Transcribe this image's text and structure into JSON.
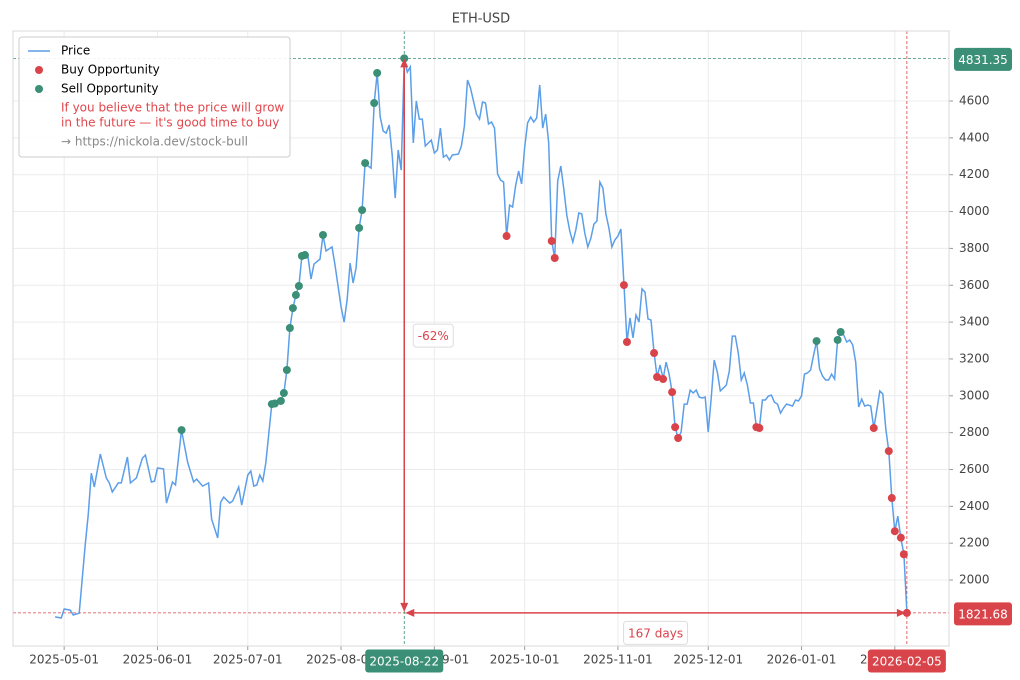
{
  "chart_data": {
    "type": "line",
    "title": "ETH-USD",
    "xlim": [
      "2025-04-14",
      "2026-02-19"
    ],
    "xticks": [
      "2025-05-01",
      "2025-06-01",
      "2025-07-01",
      "2025-08-01",
      "2025-09-01",
      "2025-10-01",
      "2025-11-01",
      "2025-12-01",
      "2026-01-01",
      "2026-02-01"
    ],
    "ylim": [
      1642,
      4980
    ],
    "yticks": [
      2000,
      2200,
      2400,
      2600,
      2800,
      3000,
      3200,
      3400,
      3600,
      3800,
      4000,
      4200,
      4400,
      4600
    ],
    "grid": true,
    "legend_position": "upper left",
    "legend_note": [
      "If you believe that the price will grow",
      "in the future — it's good time to buy"
    ],
    "legend_note_color": "#e0474c",
    "legend_link": "→ https://nickola.dev/stock-bull",
    "series": [
      {
        "name": "Price",
        "kind": "line",
        "color": "#5b9ee9",
        "x": [
          "2025-04-28",
          "2025-04-30",
          "2025-05-01",
          "2025-05-03",
          "2025-05-04",
          "2025-05-06",
          "2025-05-08",
          "2025-05-09",
          "2025-05-10",
          "2025-05-11",
          "2025-05-13",
          "2025-05-15",
          "2025-05-16",
          "2025-05-17",
          "2025-05-19",
          "2025-05-20",
          "2025-05-22",
          "2025-05-23",
          "2025-05-25",
          "2025-05-27",
          "2025-05-28",
          "2025-05-30",
          "2025-05-31",
          "2025-06-01",
          "2025-06-03",
          "2025-06-04",
          "2025-06-06",
          "2025-06-07",
          "2025-06-09",
          "2025-06-11",
          "2025-06-13",
          "2025-06-14",
          "2025-06-16",
          "2025-06-18",
          "2025-06-19",
          "2025-06-21",
          "2025-06-22",
          "2025-06-23",
          "2025-06-25",
          "2025-06-26",
          "2025-06-28",
          "2025-06-29",
          "2025-07-01",
          "2025-07-02",
          "2025-07-03",
          "2025-07-04",
          "2025-07-05",
          "2025-07-06",
          "2025-07-07",
          "2025-07-09",
          "2025-07-10",
          "2025-07-11",
          "2025-07-12",
          "2025-07-13",
          "2025-07-14",
          "2025-07-15",
          "2025-07-16",
          "2025-07-17",
          "2025-07-18",
          "2025-07-19",
          "2025-07-20",
          "2025-07-21",
          "2025-07-22",
          "2025-07-23",
          "2025-07-25",
          "2025-07-26",
          "2025-07-27",
          "2025-07-29",
          "2025-07-30",
          "2025-08-01",
          "2025-08-02",
          "2025-08-03",
          "2025-08-04",
          "2025-08-05",
          "2025-08-06",
          "2025-08-07",
          "2025-08-08",
          "2025-08-09",
          "2025-08-10",
          "2025-08-11",
          "2025-08-12",
          "2025-08-13",
          "2025-08-14",
          "2025-08-15",
          "2025-08-16",
          "2025-08-17",
          "2025-08-18",
          "2025-08-19",
          "2025-08-20",
          "2025-08-21",
          "2025-08-22",
          "2025-08-23",
          "2025-08-24",
          "2025-08-25",
          "2025-08-26",
          "2025-08-27",
          "2025-08-28",
          "2025-08-29",
          "2025-08-30",
          "2025-08-31",
          "2025-09-01",
          "2025-09-02",
          "2025-09-03",
          "2025-09-04",
          "2025-09-05",
          "2025-09-06",
          "2025-09-07",
          "2025-09-09",
          "2025-09-10",
          "2025-09-11",
          "2025-09-12",
          "2025-09-13",
          "2025-09-15",
          "2025-09-16",
          "2025-09-17",
          "2025-09-18",
          "2025-09-19",
          "2025-09-20",
          "2025-09-21",
          "2025-09-22",
          "2025-09-23",
          "2025-09-24",
          "2025-09-25",
          "2025-09-26",
          "2025-09-27",
          "2025-09-28",
          "2025-09-29",
          "2025-09-30",
          "2025-10-01",
          "2025-10-02",
          "2025-10-03",
          "2025-10-04",
          "2025-10-05",
          "2025-10-06",
          "2025-10-07",
          "2025-10-08",
          "2025-10-09",
          "2025-10-10",
          "2025-10-11",
          "2025-10-12",
          "2025-10-13",
          "2025-10-14",
          "2025-10-15",
          "2025-10-16",
          "2025-10-17",
          "2025-10-18",
          "2025-10-19",
          "2025-10-20",
          "2025-10-21",
          "2025-10-22",
          "2025-10-23",
          "2025-10-24",
          "2025-10-25",
          "2025-10-26",
          "2025-10-27",
          "2025-10-28",
          "2025-10-29",
          "2025-10-30",
          "2025-10-31",
          "2025-11-01",
          "2025-11-02",
          "2025-11-03",
          "2025-11-04",
          "2025-11-05",
          "2025-11-06",
          "2025-11-07",
          "2025-11-08",
          "2025-11-09",
          "2025-11-10",
          "2025-11-11",
          "2025-11-12",
          "2025-11-13",
          "2025-11-14",
          "2025-11-15",
          "2025-11-16",
          "2025-11-17",
          "2025-11-18",
          "2025-11-19",
          "2025-11-20",
          "2025-11-21",
          "2025-11-22",
          "2025-11-23",
          "2025-11-24",
          "2025-11-25",
          "2025-11-26",
          "2025-11-27",
          "2025-11-28",
          "2025-11-29",
          "2025-11-30",
          "2025-12-01",
          "2025-12-02",
          "2025-12-03",
          "2025-12-04",
          "2025-12-05",
          "2025-12-06",
          "2025-12-07",
          "2025-12-08",
          "2025-12-09",
          "2025-12-10",
          "2025-12-11",
          "2025-12-12",
          "2025-12-13",
          "2025-12-14",
          "2025-12-15",
          "2025-12-16",
          "2025-12-17",
          "2025-12-18",
          "2025-12-19",
          "2025-12-20",
          "2025-12-21",
          "2025-12-22",
          "2025-12-23",
          "2025-12-24",
          "2025-12-25",
          "2025-12-26",
          "2025-12-27",
          "2025-12-28",
          "2025-12-29",
          "2025-12-30",
          "2025-12-31",
          "2026-01-01",
          "2026-01-02",
          "2026-01-03",
          "2026-01-04",
          "2026-01-05",
          "2026-01-06",
          "2026-01-07",
          "2026-01-08",
          "2026-01-09",
          "2026-01-10",
          "2026-01-11",
          "2026-01-12",
          "2026-01-13",
          "2026-01-14",
          "2026-01-15",
          "2026-01-16",
          "2026-01-17",
          "2026-01-18",
          "2026-01-19",
          "2026-01-20",
          "2026-01-21",
          "2026-01-22",
          "2026-01-23",
          "2026-01-24",
          "2026-01-25",
          "2026-01-26",
          "2026-01-27",
          "2026-01-28",
          "2026-01-29",
          "2026-01-30",
          "2026-01-31",
          "2026-02-01",
          "2026-02-02",
          "2026-02-03",
          "2026-02-04",
          "2026-02-05"
        ],
        "values": [
          1800,
          1794,
          1843,
          1837,
          1810,
          1820,
          2190,
          2353,
          2580,
          2505,
          2684,
          2554,
          2527,
          2478,
          2527,
          2527,
          2668,
          2527,
          2554,
          2662,
          2678,
          2532,
          2537,
          2608,
          2603,
          2418,
          2532,
          2516,
          2814,
          2640,
          2532,
          2548,
          2510,
          2527,
          2331,
          2228,
          2423,
          2450,
          2418,
          2429,
          2505,
          2407,
          2570,
          2592,
          2510,
          2516,
          2570,
          2537,
          2635,
          2955,
          2958,
          2961,
          2972,
          3015,
          3140,
          3368,
          3476,
          3547,
          3596,
          3759,
          3764,
          3759,
          3634,
          3715,
          3742,
          3873,
          3786,
          3808,
          3710,
          3482,
          3400,
          3520,
          3721,
          3612,
          3694,
          3911,
          4008,
          4263,
          4247,
          4236,
          4589,
          4752,
          4513,
          4437,
          4426,
          4470,
          4307,
          4073,
          4334,
          4225,
          4831.35,
          4757,
          4785,
          4372,
          4600,
          4502,
          4502,
          4356,
          4372,
          4388,
          4318,
          4334,
          4453,
          4296,
          4307,
          4280,
          4307,
          4312,
          4356,
          4464,
          4714,
          4670,
          4529,
          4502,
          4594,
          4589,
          4475,
          4486,
          4453,
          4204,
          4171,
          4160,
          3867,
          4035,
          4025,
          4139,
          4220,
          4150,
          4345,
          4481,
          4513,
          4486,
          4508,
          4687,
          4453,
          4529,
          4372,
          3840,
          3748,
          4166,
          4247,
          4122,
          3981,
          3894,
          3835,
          3900,
          3992,
          3987,
          3883,
          3808,
          3856,
          3932,
          3949,
          4160,
          4128,
          3987,
          3911,
          3808,
          3846,
          3867,
          3905,
          3601,
          3292,
          3422,
          3314,
          3438,
          3400,
          3580,
          3563,
          3417,
          3411,
          3232,
          3102,
          3167,
          3091,
          3183,
          3118,
          3020,
          2830,
          2771,
          2803,
          2955,
          2955,
          3031,
          3015,
          3031,
          2993,
          2988,
          2993,
          2803,
          2988,
          3194,
          3129,
          3026,
          3042,
          3058,
          3134,
          3324,
          3324,
          3232,
          3086,
          3124,
          3058,
          2961,
          2961,
          2830,
          2825,
          2977,
          2977,
          2999,
          3004,
          2966,
          2955,
          2906,
          2934,
          2955,
          2950,
          2944,
          2977,
          2972,
          2999,
          3118,
          3124,
          3140,
          3221,
          3297,
          3145,
          3107,
          3086,
          3086,
          3118,
          3091,
          3303,
          3346,
          3330,
          3292,
          3303,
          3276,
          3183,
          2939,
          2982,
          2944,
          2950,
          2944,
          2825,
          2923,
          3026,
          3010,
          2820,
          2700,
          2445,
          2265,
          2347,
          2230,
          2140,
          1821.68
        ]
      },
      {
        "name": "Buy Opportunity",
        "kind": "scatter",
        "color": "#d9434a",
        "x": [
          "2025-09-25",
          "2025-10-10",
          "2025-10-11",
          "2025-11-03",
          "2025-11-04",
          "2025-11-13",
          "2025-11-14",
          "2025-11-16",
          "2025-11-19",
          "2025-11-20",
          "2025-11-21",
          "2025-12-17",
          "2025-12-18",
          "2026-01-25",
          "2026-01-30",
          "2026-01-31",
          "2026-02-01",
          "2026-02-03",
          "2026-02-04",
          "2026-02-05"
        ],
        "values": [
          3867,
          3840,
          3748,
          3601,
          3292,
          3232,
          3102,
          3091,
          3020,
          2830,
          2771,
          2830,
          2825,
          2825,
          2700,
          2445,
          2265,
          2230,
          2140,
          1821.68
        ]
      },
      {
        "name": "Sell Opportunity",
        "kind": "scatter",
        "color": "#3a8f76",
        "x": [
          "2025-06-09",
          "2025-07-09",
          "2025-07-10",
          "2025-07-12",
          "2025-07-13",
          "2025-07-14",
          "2025-07-15",
          "2025-07-16",
          "2025-07-17",
          "2025-07-18",
          "2025-07-19",
          "2025-07-20",
          "2025-07-26",
          "2025-08-07",
          "2025-08-08",
          "2025-08-09",
          "2025-08-12",
          "2025-08-13",
          "2025-08-22",
          "2026-01-06",
          "2026-01-13",
          "2026-01-14"
        ],
        "values": [
          2814,
          2955,
          2958,
          2972,
          3015,
          3140,
          3368,
          3476,
          3547,
          3596,
          3759,
          3764,
          3873,
          3911,
          4008,
          4263,
          4589,
          4752,
          4831.35,
          3297,
          3303,
          3346
        ]
      }
    ],
    "peak": {
      "date": "2025-08-22",
      "value": 4831.35,
      "color": "#3a8f76"
    },
    "trough": {
      "date": "2026-02-05",
      "value": 1821.68,
      "color": "#d9434a"
    },
    "change_label": "-62%",
    "duration_label": "167 days",
    "arrow_color": "#d9434a"
  }
}
